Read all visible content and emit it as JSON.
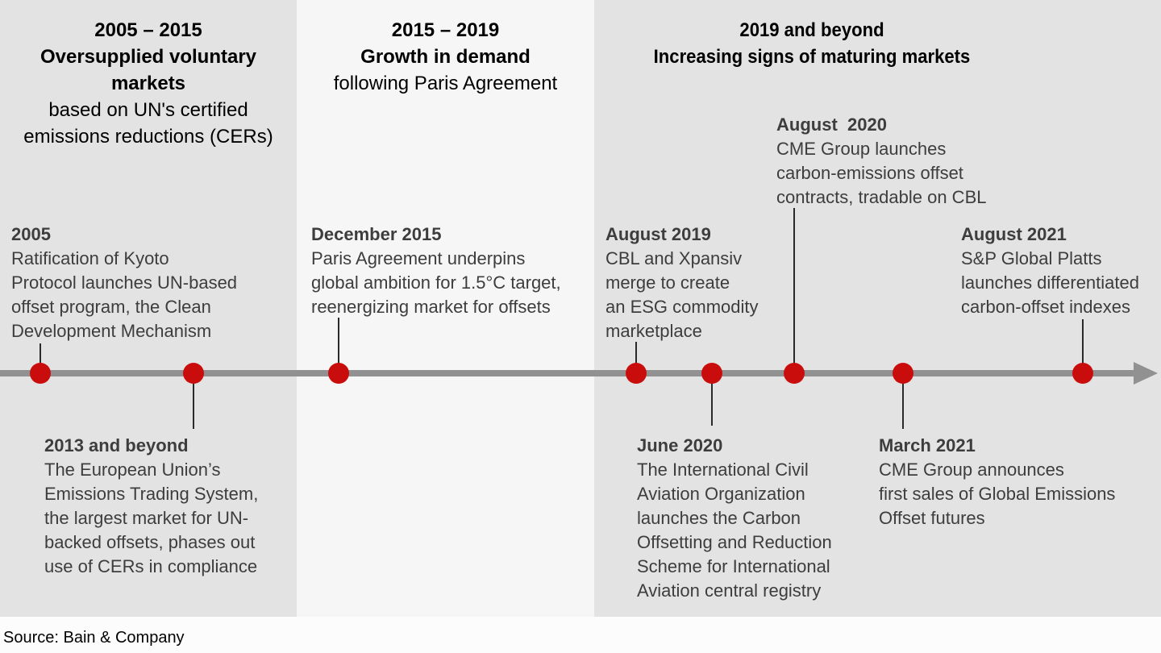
{
  "meta": {
    "source_note": "Source: Bain & Company"
  },
  "colors": {
    "panel_gray": "#e3e3e3",
    "panel_light": "#f6f6f6",
    "axis_gray": "#919191",
    "dot_red": "#c90d0d",
    "event_text": "#3d3d3d",
    "header_text": "#000000"
  },
  "sections": [
    {
      "period": "2005 – 2015",
      "title": "Oversupplied voluntary markets",
      "subtitle": "based on UN's certified emissions reductions (CERs)"
    },
    {
      "period": "2015 – 2019",
      "title": "Growth in demand",
      "subtitle": "following Paris Agreement"
    },
    {
      "period": "2019 and beyond",
      "title": "Increasing signs of maturing markets",
      "subtitle": ""
    }
  ],
  "events": [
    {
      "date": "2005",
      "description": "Ratification of Kyoto\nProtocol launches UN-based\noffset program, the Clean\nDevelopment Mechanism"
    },
    {
      "date": "2013 and beyond",
      "description": "The European Union’s\nEmissions Trading System,\nthe largest market for UN-\nbacked offsets, phases out\nuse of CERs in compliance"
    },
    {
      "date": "December 2015",
      "description": "Paris Agreement underpins\nglobal ambition for 1.5°C target,\nreenergizing market for offsets"
    },
    {
      "date": "August 2019",
      "description": "CBL and Xpansiv\nmerge to create\nan ESG commodity\nmarketplace"
    },
    {
      "date": "June 2020",
      "description": "The International Civil\nAviation Organization\nlaunches the Carbon\nOffsetting and Reduction\nScheme for International\nAviation central registry"
    },
    {
      "date": "August  2020",
      "description": "CME Group launches\ncarbon-emissions offset\ncontracts, tradable on CBL"
    },
    {
      "date": "March 2021",
      "description": "CME Group announces\nfirst sales of Global Emissions\nOffset futures"
    },
    {
      "date": "August 2021",
      "description": "S&P Global Platts\nlaunches differentiated\ncarbon-offset indexes"
    }
  ]
}
